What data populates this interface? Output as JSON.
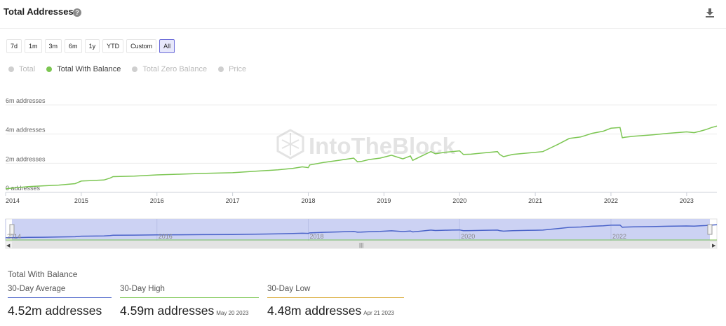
{
  "header": {
    "title": "Total Addresses",
    "help_icon": "question-icon",
    "download_icon": "download-icon"
  },
  "ranges": [
    "7d",
    "1m",
    "3m",
    "6m",
    "1y",
    "YTD",
    "Custom",
    "All"
  ],
  "active_range": "All",
  "legend": [
    {
      "label": "Total",
      "active": false
    },
    {
      "label": "Total With Balance",
      "active": true
    },
    {
      "label": "Total Zero Balance",
      "active": false
    },
    {
      "label": "Price",
      "active": false
    }
  ],
  "colors": {
    "series": "#7cc652",
    "avg": "#4a63c9",
    "high": "#7cc652",
    "low": "#d9a934",
    "navigator_fill": "#ccd2f3"
  },
  "chart_data": {
    "type": "line",
    "watermark": "IntoTheBlock",
    "y_ticks": [
      {
        "value": 0,
        "label": "0 addresses"
      },
      {
        "value": 2,
        "label": "2m addresses"
      },
      {
        "value": 4,
        "label": "4m addresses"
      },
      {
        "value": 6,
        "label": "6m addresses"
      }
    ],
    "ylim": [
      0,
      6
    ],
    "xlim": [
      2014.0,
      2023.4
    ],
    "x_ticks": [
      "2014",
      "2015",
      "2016",
      "2017",
      "2018",
      "2019",
      "2020",
      "2021",
      "2022",
      "2023"
    ],
    "navigator_ticks": [
      "2014",
      "2016",
      "2018",
      "2020",
      "2022"
    ],
    "series": [
      {
        "name": "Total With Balance",
        "x": [
          2014.0,
          2014.1,
          2014.3,
          2014.5,
          2014.7,
          2014.92,
          2015.0,
          2015.3,
          2015.38,
          2015.42,
          2015.7,
          2016.0,
          2016.3,
          2016.6,
          2017.0,
          2017.3,
          2017.6,
          2017.8,
          2017.92,
          2018.0,
          2018.02,
          2018.2,
          2018.4,
          2018.6,
          2018.65,
          2018.7,
          2018.8,
          2018.95,
          2019.1,
          2019.25,
          2019.35,
          2019.38,
          2019.5,
          2019.62,
          2019.68,
          2019.8,
          2019.9,
          2020.0,
          2020.05,
          2020.15,
          2020.3,
          2020.5,
          2020.53,
          2020.58,
          2020.7,
          2020.9,
          2021.0,
          2021.1,
          2021.2,
          2021.3,
          2021.45,
          2021.6,
          2021.75,
          2021.9,
          2022.0,
          2022.12,
          2022.15,
          2022.18,
          2022.3,
          2022.55,
          2022.75,
          2023.0,
          2023.1,
          2023.18,
          2023.25,
          2023.33,
          2023.4
        ],
        "values": [
          0.25,
          0.3,
          0.4,
          0.45,
          0.5,
          0.6,
          0.78,
          0.85,
          0.98,
          1.08,
          1.12,
          1.2,
          1.25,
          1.3,
          1.35,
          1.45,
          1.55,
          1.65,
          1.75,
          1.7,
          1.88,
          2.05,
          2.2,
          2.35,
          2.1,
          2.12,
          2.25,
          2.35,
          2.55,
          2.3,
          2.5,
          2.2,
          2.5,
          2.8,
          2.65,
          2.75,
          2.8,
          2.85,
          2.6,
          2.62,
          2.7,
          2.8,
          2.6,
          2.45,
          2.6,
          2.7,
          2.75,
          2.8,
          3.05,
          3.3,
          3.7,
          3.8,
          4.05,
          4.2,
          4.4,
          4.45,
          3.75,
          3.78,
          3.85,
          3.95,
          4.05,
          4.15,
          4.1,
          4.2,
          4.3,
          4.45,
          4.55
        ]
      }
    ]
  },
  "stats": {
    "title": "Total With Balance",
    "items": [
      {
        "label": "30-Day Average",
        "value": "4.52m addresses",
        "date": ""
      },
      {
        "label": "30-Day High",
        "value": "4.59m addresses",
        "date": "May 20 2023"
      },
      {
        "label": "30-Day Low",
        "value": "4.48m addresses",
        "date": "Apr 21 2023"
      }
    ]
  }
}
